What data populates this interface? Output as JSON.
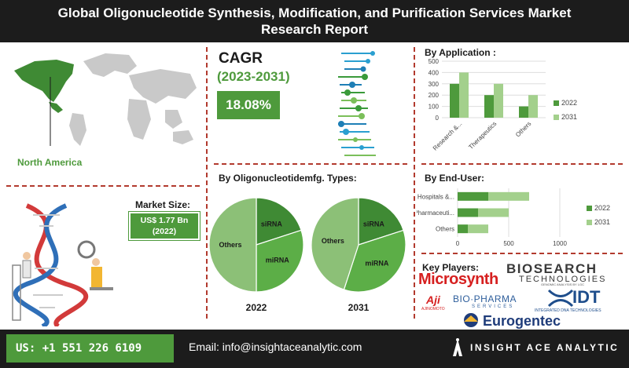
{
  "header": {
    "line1": "Global Oligonucleotide Synthesis, Modification, and Purification Services Market",
    "line2": "Research Report"
  },
  "region": {
    "label": "North America",
    "icon": "world-map-icon"
  },
  "cagr": {
    "title": "CAGR",
    "years": "(2023-2031)",
    "value": "18.08%"
  },
  "market_size": {
    "title": "Market Size:",
    "value_line1": "US$ 1.77 Bn",
    "value_line2": "(2022)"
  },
  "types_section": {
    "title": "By Oligonucleotidemfg. Types:"
  },
  "application_section": {
    "title": "By Application :"
  },
  "enduser_section": {
    "title": "By  End-User:"
  },
  "key_players": {
    "title": "Key Players:",
    "logos": {
      "microsynth": "Microsynth",
      "biosearch": "BIOSEARCH",
      "biosearch_sub": "TECHNOLOGIES",
      "biosearch_tag": "GENOMIC ANALYSIS BY LGC",
      "ajinomoto": "Aji",
      "ajinomoto_sub": "AJINOMOTO",
      "biopharma": "BIO·PHARMA",
      "biopharma_sub": "SERVICES",
      "idt": "IDT",
      "idt_sub": "INTEGRATED DNA TECHNOLOGIES",
      "eurogentec": "Eurogentec"
    }
  },
  "footer": {
    "phone": "US: +1 551 226 6109",
    "email": "Email: info@insightaceanalytic.com",
    "brand": "INSIGHT ACE ANALYTIC"
  },
  "colors": {
    "dark_green": "#4e9a3c",
    "light_green": "#a3d08c",
    "mid_green": "#6db35a",
    "pie_dark": "#3f8a34",
    "pie_mid": "#5cae47",
    "pie_light": "#8cc077",
    "divider": "#b23a2e",
    "header_bg": "#1c1c1c"
  },
  "chart_data": [
    {
      "type": "bar",
      "title": "By Application :",
      "categories": [
        "Research &...",
        "Therapeutics",
        "Others"
      ],
      "series": [
        {
          "name": "2022",
          "values": [
            300,
            200,
            100
          ]
        },
        {
          "name": "2031",
          "values": [
            400,
            300,
            200
          ]
        }
      ],
      "ylim": [
        0,
        500
      ],
      "yticks": [
        "0",
        "100",
        "200",
        "300",
        "400",
        "500"
      ],
      "legend": "right",
      "grid": true
    },
    {
      "type": "bar",
      "orientation": "horizontal",
      "stacked": true,
      "title": "By  End-User:",
      "categories": [
        "Hospitals &...",
        "Pharmaceuti...",
        "Others"
      ],
      "series": [
        {
          "name": "2022",
          "values": [
            300,
            200,
            100
          ]
        },
        {
          "name": "2031",
          "values": [
            400,
            300,
            200
          ]
        }
      ],
      "xlim": [
        0,
        1000
      ],
      "xticks": [
        "0",
        "500",
        "1000"
      ],
      "legend": "right",
      "grid": true
    },
    {
      "type": "pie",
      "title": "2022",
      "slices": [
        {
          "label": "siRNA",
          "value": 20
        },
        {
          "label": "miRNA",
          "value": 30
        },
        {
          "label": "Others",
          "value": 50
        }
      ]
    },
    {
      "type": "pie",
      "title": "2031",
      "slices": [
        {
          "label": "siRNA",
          "value": 20
        },
        {
          "label": "miRNA",
          "value": 35
        },
        {
          "label": "Others",
          "value": 45
        }
      ]
    }
  ]
}
